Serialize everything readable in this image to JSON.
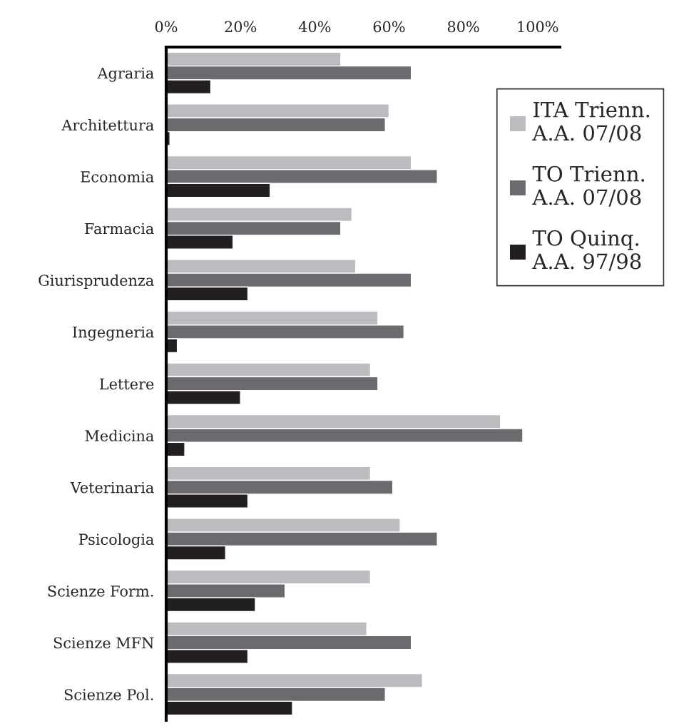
{
  "chart_data": {
    "type": "bar",
    "orientation": "horizontal",
    "categories": [
      "Agraria",
      "Architettura",
      "Economia",
      "Farmacia",
      "Giurisprudenza",
      "Ingegneria",
      "Lettere",
      "Medicina",
      "Veterinaria",
      "Psicologia",
      "Scienze Form.",
      "Scienze MFN",
      "Scienze Pol."
    ],
    "series": [
      {
        "name": "ITA Trienn.\nA.A. 07/08",
        "color": "#bbbcc0",
        "values": [
          47,
          60,
          66,
          50,
          51,
          57,
          55,
          90,
          55,
          63,
          55,
          54,
          69
        ]
      },
      {
        "name": "TO Trienn.\nA.A. 07/08",
        "color": "#6b6b6f",
        "values": [
          66,
          59,
          73,
          47,
          66,
          64,
          57,
          96,
          61,
          73,
          32,
          66,
          59
        ]
      },
      {
        "name": "TO Quinq.\nA.A. 97/98",
        "color": "#231f20",
        "values": [
          12,
          1,
          28,
          18,
          22,
          3,
          20,
          5,
          22,
          16,
          24,
          22,
          34
        ]
      }
    ],
    "xlim": [
      0,
      106
    ],
    "xticks": [
      {
        "value": 0,
        "label": "0%"
      },
      {
        "value": 20,
        "label": "20%"
      },
      {
        "value": 40,
        "label": "40%"
      },
      {
        "value": 60,
        "label": "60%"
      },
      {
        "value": 80,
        "label": "80%"
      },
      {
        "value": 100,
        "label": "100%"
      }
    ],
    "grid": false,
    "legend": "right"
  }
}
